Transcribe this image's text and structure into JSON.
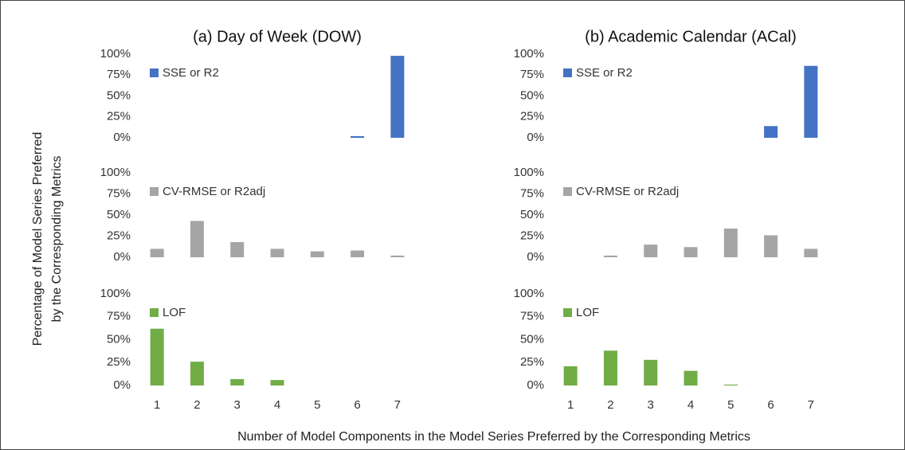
{
  "ylabel": [
    "Percentage of Model Series Preferred",
    "by the Corresponding Metrics"
  ],
  "xlabel": "Number of Model Components in the Model Series Preferred by the Corresponding Metrics",
  "chart_data": [
    {
      "type": "bar",
      "title": "(a) Day of Week (DOW)",
      "series": [
        {
          "name": "SSE or R2",
          "color": "#4472c4",
          "values": [
            0,
            0,
            0,
            0,
            0,
            2,
            98
          ]
        }
      ],
      "ylim": [
        0,
        100
      ],
      "yticks": [
        {
          "value": 0,
          "label": "0%"
        },
        {
          "value": 25,
          "label": "25%"
        },
        {
          "value": 50,
          "label": "50%"
        },
        {
          "value": 75,
          "label": "75%"
        },
        {
          "value": 100,
          "label": "100%"
        }
      ]
    },
    {
      "type": "bar",
      "series": [
        {
          "name": "CV-RMSE or R2adj",
          "color": "#a5a5a5",
          "values": [
            10,
            43,
            18,
            10,
            7,
            8,
            2
          ]
        }
      ],
      "ylim": [
        0,
        100
      ],
      "yticks": [
        {
          "value": 0,
          "label": "0%"
        },
        {
          "value": 25,
          "label": "25%"
        },
        {
          "value": 50,
          "label": "50%"
        },
        {
          "value": 75,
          "label": "75%"
        },
        {
          "value": 100,
          "label": "100%"
        }
      ]
    },
    {
      "type": "bar",
      "categories": [
        "1",
        "2",
        "3",
        "4",
        "5",
        "6",
        "7"
      ],
      "series": [
        {
          "name": "LOF",
          "color": "#70ad47",
          "values": [
            62,
            26,
            7,
            6,
            0,
            0,
            0
          ]
        }
      ],
      "ylim": [
        0,
        100
      ],
      "yticks": [
        {
          "value": 0,
          "label": "0%"
        },
        {
          "value": 25,
          "label": "25%"
        },
        {
          "value": 50,
          "label": "50%"
        },
        {
          "value": 75,
          "label": "75%"
        },
        {
          "value": 100,
          "label": "100%"
        }
      ]
    },
    {
      "type": "bar",
      "title": "(b) Academic Calendar (ACal)",
      "series": [
        {
          "name": "SSE or R2",
          "color": "#4472c4",
          "values": [
            0,
            0,
            0,
            0,
            0,
            14,
            86
          ]
        }
      ],
      "ylim": [
        0,
        100
      ],
      "yticks": [
        {
          "value": 0,
          "label": "0%"
        },
        {
          "value": 25,
          "label": "25%"
        },
        {
          "value": 50,
          "label": "50%"
        },
        {
          "value": 75,
          "label": "75%"
        },
        {
          "value": 100,
          "label": "100%"
        }
      ]
    },
    {
      "type": "bar",
      "series": [
        {
          "name": "CV-RMSE or R2adj",
          "color": "#a5a5a5",
          "values": [
            0,
            2,
            15,
            12,
            34,
            26,
            10
          ]
        }
      ],
      "ylim": [
        0,
        100
      ],
      "yticks": [
        {
          "value": 0,
          "label": "0%"
        },
        {
          "value": 25,
          "label": "25%"
        },
        {
          "value": 50,
          "label": "50%"
        },
        {
          "value": 75,
          "label": "75%"
        },
        {
          "value": 100,
          "label": "100%"
        }
      ]
    },
    {
      "type": "bar",
      "categories": [
        "1",
        "2",
        "3",
        "4",
        "5",
        "6",
        "7"
      ],
      "series": [
        {
          "name": "LOF",
          "color": "#70ad47",
          "values": [
            21,
            38,
            28,
            16,
            1,
            0,
            0
          ]
        }
      ],
      "ylim": [
        0,
        100
      ],
      "yticks": [
        {
          "value": 0,
          "label": "0%"
        },
        {
          "value": 25,
          "label": "25%"
        },
        {
          "value": 50,
          "label": "50%"
        },
        {
          "value": 75,
          "label": "75%"
        },
        {
          "value": 100,
          "label": "100%"
        }
      ]
    }
  ]
}
